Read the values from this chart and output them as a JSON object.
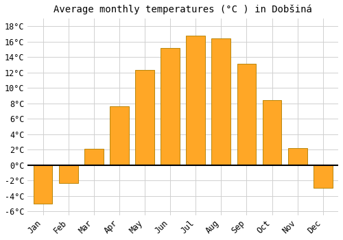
{
  "title": "Average monthly temperatures (°C ) in Dobšiná",
  "months": [
    "Jan",
    "Feb",
    "Mar",
    "Apr",
    "May",
    "Jun",
    "Jul",
    "Aug",
    "Sep",
    "Oct",
    "Nov",
    "Dec"
  ],
  "values": [
    -5.0,
    -2.3,
    2.1,
    7.6,
    12.3,
    15.2,
    16.8,
    16.4,
    13.1,
    8.4,
    2.2,
    -3.0
  ],
  "bar_color": "#FFA726",
  "bar_edge_color": "#B8860B",
  "ylim": [
    -6.5,
    19
  ],
  "yticks": [
    -6,
    -4,
    -2,
    0,
    2,
    4,
    6,
    8,
    10,
    12,
    14,
    16,
    18
  ],
  "background_color": "#ffffff",
  "grid_color": "#d0d0d0",
  "title_fontsize": 10,
  "tick_fontsize": 8.5,
  "figsize": [
    5.0,
    3.5
  ],
  "dpi": 100
}
